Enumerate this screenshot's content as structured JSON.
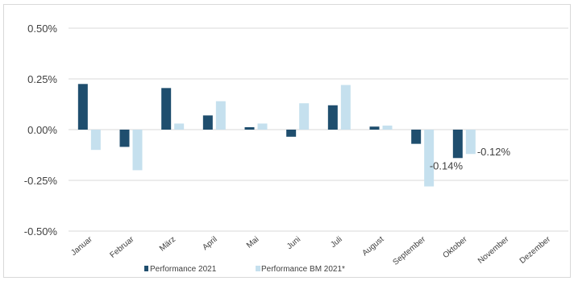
{
  "chart_data": {
    "type": "bar",
    "categories": [
      "Januar",
      "Februar",
      "März",
      "April",
      "Mai",
      "Juni",
      "Juli",
      "August",
      "September",
      "Oktober",
      "November",
      "Dezember"
    ],
    "series": [
      {
        "name": "Performance 2021",
        "color": "#1f4e6e",
        "values": [
          0.225,
          -0.085,
          0.205,
          0.07,
          0.012,
          -0.035,
          0.12,
          0.015,
          -0.07,
          -0.14,
          null,
          null
        ]
      },
      {
        "name": "Performance BM 2021*",
        "color": "#c5e0ee",
        "values": [
          -0.1,
          -0.2,
          0.03,
          0.14,
          0.03,
          0.13,
          0.22,
          0.02,
          -0.28,
          -0.12,
          null,
          null
        ]
      }
    ],
    "y_ticks": [
      "0.50%",
      "0.25%",
      "0.00%",
      "-0.25%",
      "-0.50%"
    ],
    "ylim": [
      -0.5,
      0.5
    ],
    "y_unit": "%",
    "grid": true,
    "legend_position": "bottom",
    "data_labels": [
      {
        "series": 0,
        "category": "Oktober",
        "text": "-0.14%"
      },
      {
        "series": 1,
        "category": "Oktober",
        "text": "-0.12%"
      }
    ]
  }
}
